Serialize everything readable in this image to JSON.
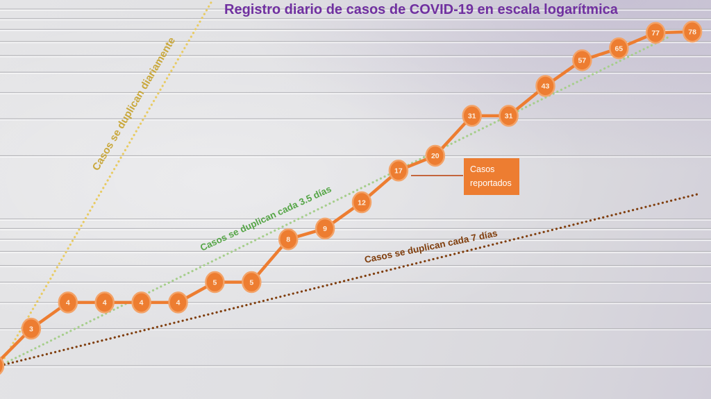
{
  "title": "Registro diario de casos de COVID-19 en escala logarítmica",
  "callout": {
    "label": "Casos reportados"
  },
  "colors": {
    "title": "#7030a0",
    "series": "#ED7D31",
    "marker_ring": "#F3A368",
    "marker_text": "#FCEEDF",
    "gridline": "#b4b4b8"
  },
  "chart_data": {
    "type": "line",
    "title": "Registro diario de casos de COVID-19 en escala logarítmica",
    "y_scale": "log",
    "ylim": [
      2,
      100
    ],
    "grid": true,
    "grid_values": [
      2,
      3,
      4,
      5,
      6,
      7,
      8,
      9,
      10,
      20,
      30,
      40,
      50,
      60,
      70,
      80,
      90,
      100
    ],
    "xlabel": "",
    "ylabel": "",
    "series": [
      {
        "name": "Casos reportados",
        "color": "#ED7D31",
        "values": [
          2,
          3,
          4,
          4,
          4,
          4,
          5,
          5,
          8,
          9,
          12,
          17,
          20,
          31,
          31,
          43,
          57,
          65,
          77,
          78
        ]
      }
    ],
    "reference_lines": [
      {
        "label": "Casos se duplican diariamente",
        "doubling_days": 1,
        "start_value": 2,
        "dot_color": "#E8CB63",
        "text_color": "#C9A83C"
      },
      {
        "label": "Casos se duplican cada 3.5 días",
        "doubling_days": 3.5,
        "start_value": 2,
        "dot_color": "#A6CE8C",
        "text_color": "#55A546"
      },
      {
        "label": "Casos se duplican cada 7 días",
        "doubling_days": 7,
        "start_value": 2,
        "dot_color": "#7F3D0C",
        "text_color": "#7F3D0C"
      }
    ],
    "legend_position": "callout-center-right"
  }
}
